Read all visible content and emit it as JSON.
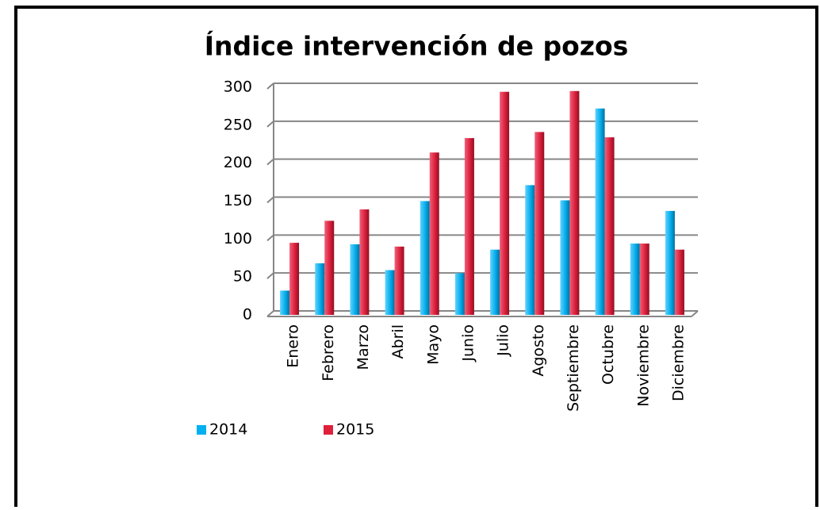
{
  "chart_data": {
    "type": "bar",
    "title": "Índice intervención de pozos",
    "categories": [
      "Enero",
      "Febrero",
      "Marzo",
      "Abril",
      "Mayo",
      "Junio",
      "Julio",
      "Agosto",
      "Septiembre",
      "Octubre",
      "Noviembre",
      "Diciembre"
    ],
    "series": [
      {
        "name": "2014",
        "color": "#00b0f0",
        "values": [
          32,
          68,
          93,
          59,
          150,
          55,
          86,
          171,
          151,
          272,
          94,
          137
        ]
      },
      {
        "name": "2015",
        "color": "#e0203a",
        "values": [
          95,
          124,
          139,
          90,
          214,
          233,
          294,
          241,
          295,
          234,
          94,
          86
        ]
      }
    ],
    "ylim": [
      0,
      300
    ],
    "yticks": [
      0,
      50,
      100,
      150,
      200,
      250,
      300
    ],
    "grid": true,
    "legend": "bottom"
  }
}
